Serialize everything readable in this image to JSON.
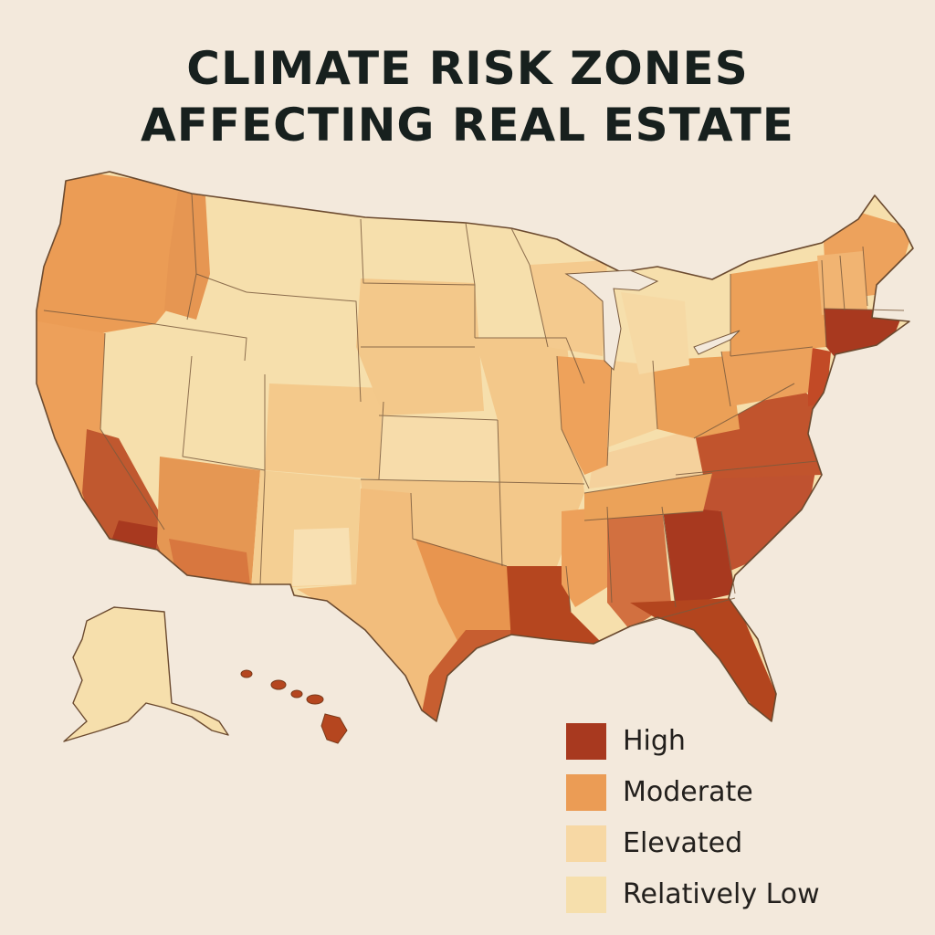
{
  "title": {
    "line1": "CLIMATE RISK ZONES",
    "line2": "AFFECTING REAL ESTATE"
  },
  "legend": {
    "items": [
      {
        "label": "High",
        "color": "#a8391f"
      },
      {
        "label": "Moderate",
        "color": "#eb9c55"
      },
      {
        "label": "Elevated",
        "color": "#f7d8a4"
      },
      {
        "label": "Relatively Low",
        "color": "#f6dfac"
      }
    ]
  },
  "regions": {
    "pacific_northwest": "Moderate",
    "northern_plains": "Relatively Low",
    "great_basin": "Relatively Low",
    "southern_california": "High",
    "southwest": "Moderate",
    "central_plains": "Relatively Low",
    "texas": "Moderate",
    "gulf_coast": "High",
    "southeast": "High",
    "mid_atlantic": "High",
    "northeast": "Moderate",
    "new_england_south": "High",
    "great_lakes": "Moderate",
    "alaska": "Relatively Low",
    "hawaii": "High"
  }
}
